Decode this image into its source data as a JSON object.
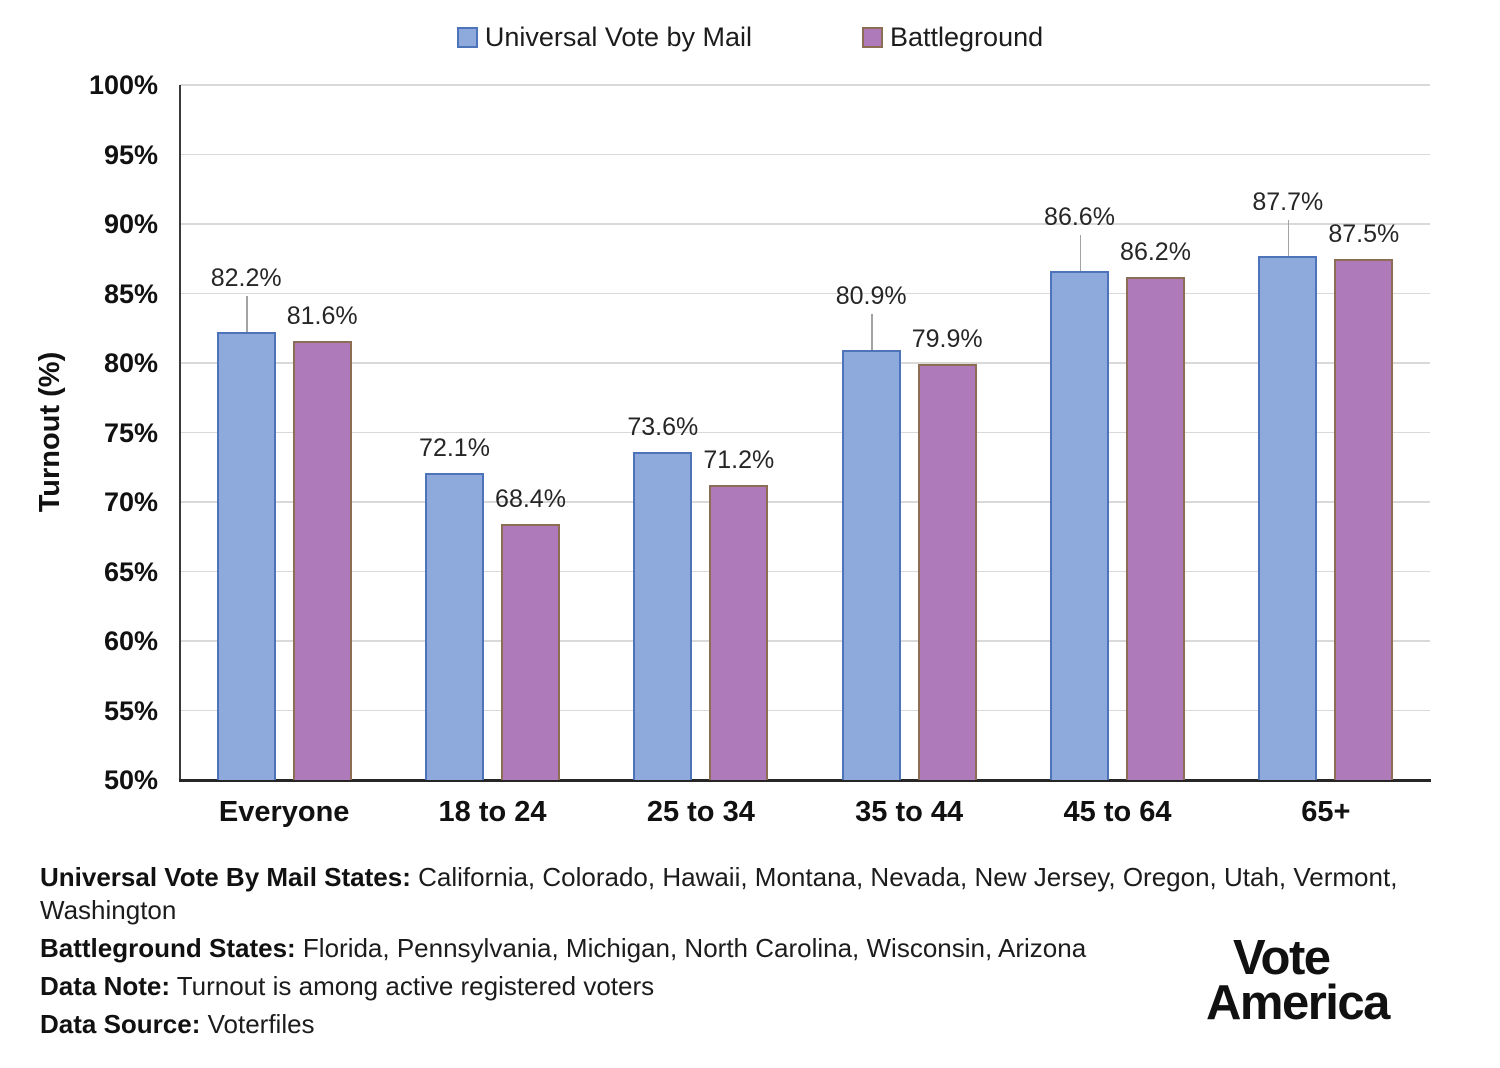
{
  "chart_data": {
    "type": "bar",
    "title": "",
    "xlabel": "",
    "ylabel": "Turnout (%)",
    "ylim": [
      50,
      100
    ],
    "ytick_step": 5,
    "ytick_suffix": "%",
    "grid": true,
    "legend_position": "top",
    "categories": [
      "Everyone",
      "18 to 24",
      "25 to 34",
      "35 to 44",
      "45 to 64",
      "65+"
    ],
    "series": [
      {
        "name": "Universal Vote by Mail",
        "color": "#8EA9DC",
        "border_color": "#4D74B9",
        "values": [
          82.2,
          72.1,
          73.6,
          80.9,
          86.6,
          87.7
        ],
        "label_leader": [
          true,
          false,
          false,
          true,
          true,
          true
        ]
      },
      {
        "name": "Battleground",
        "color": "#AF7ABA",
        "border_color": "#8D6E55",
        "values": [
          81.6,
          68.4,
          71.2,
          79.9,
          86.2,
          87.5
        ],
        "label_leader": [
          false,
          false,
          false,
          false,
          false,
          false
        ]
      }
    ]
  },
  "notes": [
    {
      "label": "Universal Vote By Mail States:",
      "text": " California, Colorado, Hawaii, Montana, Nevada, New Jersey, Oregon, Utah, Vermont, Washington"
    },
    {
      "label": "Battleground States:",
      "text": " Florida, Pennsylvania, Michigan, North Carolina, Wisconsin, Arizona"
    },
    {
      "label": "Data Note:",
      "text": " Turnout is among active registered voters"
    },
    {
      "label": "Data Source:",
      "text": " Voterfiles"
    }
  ],
  "logo": {
    "line1": "Vote",
    "line2": "America"
  }
}
